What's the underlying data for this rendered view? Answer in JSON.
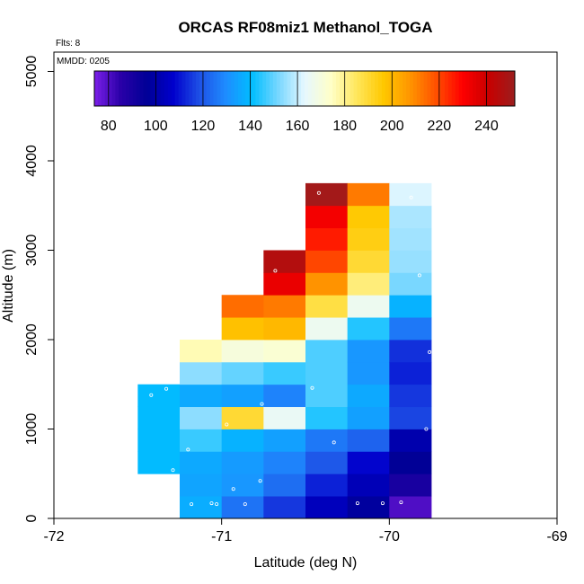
{
  "chart_data": {
    "type": "heatmap",
    "title": "ORCAS RF08miz1 Methanol_TOGA",
    "xlabel": "Latitude (deg N)",
    "ylabel": "Altitude (m)",
    "xlim": [
      -72,
      -69
    ],
    "ylim": [
      0,
      5200
    ],
    "xticks": [
      "-72",
      "-71",
      "-70",
      "-69"
    ],
    "yticks": [
      "0",
      "1000",
      "2000",
      "3000",
      "4000",
      "5000"
    ],
    "flights_note": "Flts: 8",
    "date_note": "MMDD: 0205",
    "colorbar": {
      "min": 74,
      "max": 252,
      "ticks": [
        "80",
        "100",
        "120",
        "140",
        "160",
        "180",
        "200",
        "220",
        "240"
      ],
      "stops": [
        "#7b1fe8",
        "#2a00a8",
        "#000096",
        "#0000cc",
        "#1e50e6",
        "#1e8cff",
        "#00beff",
        "#78d7ff",
        "#e6f8ff",
        "#ffffc8",
        "#ffe65a",
        "#ffc800",
        "#ff9600",
        "#ff5000",
        "#ff0000",
        "#c80000",
        "#9b1e1e"
      ]
    },
    "bin_width_deg": 0.25,
    "bin_height_m": 250,
    "columns": [
      {
        "lat": -71.375,
        "bins": [
          {
            "alt": 625,
            "value": 140
          },
          {
            "alt": 875,
            "value": 140
          },
          {
            "alt": 1125,
            "value": 140
          },
          {
            "alt": 1375,
            "value": 140
          }
        ]
      },
      {
        "lat": -71.125,
        "bins": [
          {
            "alt": 125,
            "value": 137
          },
          {
            "alt": 375,
            "value": 135
          },
          {
            "alt": 625,
            "value": 136
          },
          {
            "alt": 875,
            "value": 146
          },
          {
            "alt": 1125,
            "value": 154
          },
          {
            "alt": 1375,
            "value": 136
          },
          {
            "alt": 1625,
            "value": 154
          },
          {
            "alt": 1875,
            "value": 176
          }
        ]
      },
      {
        "lat": -70.875,
        "bins": [
          {
            "alt": 125,
            "value": 125
          },
          {
            "alt": 375,
            "value": 132
          },
          {
            "alt": 625,
            "value": 133
          },
          {
            "alt": 875,
            "value": 138
          },
          {
            "alt": 1125,
            "value": 190
          },
          {
            "alt": 1375,
            "value": 134
          },
          {
            "alt": 1625,
            "value": 150
          },
          {
            "alt": 1875,
            "value": 170
          },
          {
            "alt": 2125,
            "value": 198
          },
          {
            "alt": 2375,
            "value": 214
          }
        ]
      },
      {
        "lat": -70.625,
        "bins": [
          {
            "alt": 125,
            "value": 115
          },
          {
            "alt": 375,
            "value": 124
          },
          {
            "alt": 625,
            "value": 128
          },
          {
            "alt": 875,
            "value": 134
          },
          {
            "alt": 1125,
            "value": 165
          },
          {
            "alt": 1375,
            "value": 128
          },
          {
            "alt": 1625,
            "value": 146
          },
          {
            "alt": 1875,
            "value": 172
          },
          {
            "alt": 2125,
            "value": 200
          },
          {
            "alt": 2375,
            "value": 212
          },
          {
            "alt": 2625,
            "value": 234
          },
          {
            "alt": 2875,
            "value": 246
          }
        ]
      },
      {
        "lat": -70.375,
        "bins": [
          {
            "alt": 125,
            "value": 104
          },
          {
            "alt": 375,
            "value": 112
          },
          {
            "alt": 625,
            "value": 120
          },
          {
            "alt": 875,
            "value": 126
          },
          {
            "alt": 1125,
            "value": 144
          },
          {
            "alt": 1375,
            "value": 148
          },
          {
            "alt": 1625,
            "value": 148
          },
          {
            "alt": 1875,
            "value": 148
          },
          {
            "alt": 2125,
            "value": 166
          },
          {
            "alt": 2375,
            "value": 188
          },
          {
            "alt": 2625,
            "value": 208
          },
          {
            "alt": 2875,
            "value": 220
          },
          {
            "alt": 3125,
            "value": 226
          },
          {
            "alt": 3375,
            "value": 232
          },
          {
            "alt": 3625,
            "value": 250
          }
        ]
      },
      {
        "lat": -70.125,
        "bins": [
          {
            "alt": 125,
            "value": 98
          },
          {
            "alt": 375,
            "value": 103
          },
          {
            "alt": 625,
            "value": 108
          },
          {
            "alt": 875,
            "value": 122
          },
          {
            "alt": 1125,
            "value": 134
          },
          {
            "alt": 1375,
            "value": 136
          },
          {
            "alt": 1625,
            "value": 132
          },
          {
            "alt": 1875,
            "value": 132
          },
          {
            "alt": 2125,
            "value": 144
          },
          {
            "alt": 2375,
            "value": 166
          },
          {
            "alt": 2625,
            "value": 182
          },
          {
            "alt": 2875,
            "value": 190
          },
          {
            "alt": 3125,
            "value": 194
          },
          {
            "alt": 3375,
            "value": 196
          },
          {
            "alt": 3625,
            "value": 212
          }
        ]
      },
      {
        "lat": -69.875,
        "bins": [
          {
            "alt": 125,
            "value": 80
          },
          {
            "alt": 375,
            "value": 90
          },
          {
            "alt": 625,
            "value": 96
          },
          {
            "alt": 875,
            "value": 101
          },
          {
            "alt": 1125,
            "value": 117
          },
          {
            "alt": 1375,
            "value": 115
          },
          {
            "alt": 1625,
            "value": 112
          },
          {
            "alt": 1875,
            "value": 114
          },
          {
            "alt": 2125,
            "value": 126
          },
          {
            "alt": 2375,
            "value": 138
          },
          {
            "alt": 2625,
            "value": 152
          },
          {
            "alt": 2875,
            "value": 155
          },
          {
            "alt": 3125,
            "value": 156
          },
          {
            "alt": 3375,
            "value": 157
          },
          {
            "alt": 3625,
            "value": 162
          }
        ]
      }
    ],
    "sample_points": [
      [
        -71.33,
        1450
      ],
      [
        -71.42,
        1380
      ],
      [
        -71.29,
        540
      ],
      [
        -71.2,
        770
      ],
      [
        -71.18,
        160
      ],
      [
        -71.06,
        170
      ],
      [
        -71.03,
        160
      ],
      [
        -70.93,
        330
      ],
      [
        -70.86,
        160
      ],
      [
        -70.77,
        420
      ],
      [
        -70.97,
        1050
      ],
      [
        -70.76,
        1280
      ],
      [
        -70.68,
        2770
      ],
      [
        -70.46,
        1460
      ],
      [
        -70.42,
        3640
      ],
      [
        -70.33,
        850
      ],
      [
        -70.19,
        170
      ],
      [
        -70.04,
        170
      ],
      [
        -69.93,
        180
      ],
      [
        -69.87,
        3590
      ],
      [
        -69.82,
        2720
      ],
      [
        -69.76,
        1860
      ],
      [
        -69.78,
        1000
      ]
    ]
  }
}
